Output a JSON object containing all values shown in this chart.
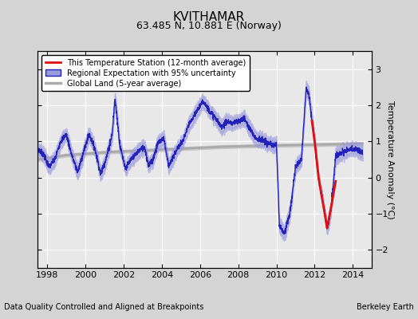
{
  "title": "KVITHAMAR",
  "subtitle": "63.485 N, 10.881 E (Norway)",
  "ylabel": "Temperature Anomaly (°C)",
  "footer_left": "Data Quality Controlled and Aligned at Breakpoints",
  "footer_right": "Berkeley Earth",
  "xlim": [
    1997.5,
    2015.0
  ],
  "ylim": [
    -2.5,
    3.5
  ],
  "yticks": [
    -2,
    -1,
    0,
    1,
    2,
    3
  ],
  "xticks": [
    1998,
    2000,
    2002,
    2004,
    2006,
    2008,
    2010,
    2012,
    2014
  ],
  "bg_color": "#d4d4d4",
  "plot_bg_color": "#e8e8e8",
  "grid_color": "#ffffff",
  "regional_color": "#2222bb",
  "regional_fill_color": "#9999dd",
  "station_color": "#dd1111",
  "global_color": "#aaaaaa",
  "global_fill_color": "#c8c8c8",
  "reg_key_t": [
    1997.5,
    1997.8,
    1998.1,
    1998.4,
    1998.7,
    1999.0,
    1999.3,
    1999.6,
    1999.9,
    2000.2,
    2000.5,
    2000.8,
    2001.1,
    2001.4,
    2001.55,
    2001.8,
    2002.1,
    2002.4,
    2002.8,
    2003.1,
    2003.3,
    2003.5,
    2003.8,
    2004.1,
    2004.35,
    2004.5,
    2004.8,
    2005.1,
    2005.4,
    2005.8,
    2006.0,
    2006.2,
    2006.5,
    2006.8,
    2007.1,
    2007.4,
    2007.7,
    2008.0,
    2008.3,
    2008.6,
    2008.9,
    2009.2,
    2009.5,
    2009.8,
    2010.0,
    2010.15,
    2010.4,
    2010.7,
    2011.0,
    2011.3,
    2011.55,
    2011.7,
    2011.85,
    2012.0,
    2012.2,
    2012.45,
    2012.65,
    2012.85,
    2013.1,
    2013.4,
    2013.7,
    2014.0,
    2014.3,
    2014.5
  ],
  "reg_key_v": [
    0.8,
    0.65,
    0.3,
    0.5,
    1.0,
    1.2,
    0.6,
    0.15,
    0.7,
    1.2,
    0.8,
    0.1,
    0.55,
    1.2,
    2.2,
    0.9,
    0.25,
    0.5,
    0.75,
    0.85,
    0.35,
    0.45,
    0.95,
    1.1,
    0.35,
    0.45,
    0.8,
    1.0,
    1.45,
    1.8,
    2.0,
    2.1,
    1.85,
    1.65,
    1.4,
    1.55,
    1.5,
    1.55,
    1.65,
    1.35,
    1.1,
    1.05,
    0.95,
    0.9,
    0.9,
    -1.3,
    -1.55,
    -1.0,
    0.3,
    0.5,
    2.45,
    2.3,
    1.6,
    1.0,
    0.0,
    -0.75,
    -1.4,
    -0.9,
    0.6,
    0.7,
    0.75,
    0.8,
    0.75,
    0.7
  ],
  "global_key_t": [
    1997.5,
    1999.0,
    2001.0,
    2003.0,
    2005.0,
    2007.0,
    2009.0,
    2011.0,
    2013.0,
    2014.5
  ],
  "global_key_v": [
    0.5,
    0.62,
    0.7,
    0.75,
    0.8,
    0.85,
    0.88,
    0.9,
    0.92,
    0.94
  ],
  "station_key_t": [
    2011.85,
    2012.0,
    2012.2,
    2012.45,
    2012.65,
    2012.85,
    2013.1
  ],
  "station_key_v": [
    1.6,
    1.0,
    0.0,
    -0.75,
    -1.4,
    -0.85,
    -0.1
  ]
}
